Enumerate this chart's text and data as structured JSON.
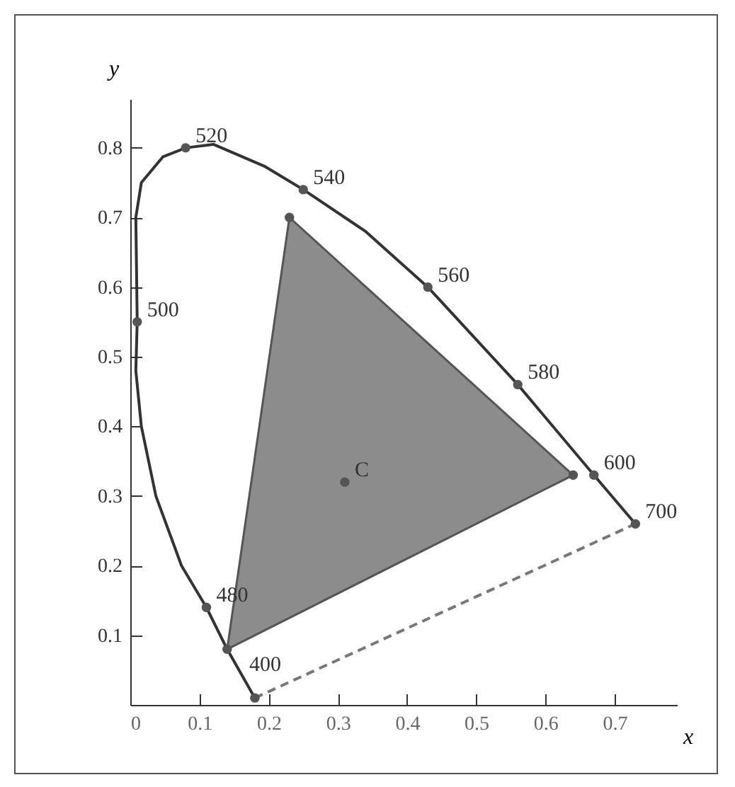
{
  "chart_data": {
    "type": "line",
    "xlabel": "x",
    "ylabel": "y",
    "xlim": [
      0,
      0.79
    ],
    "ylim": [
      0,
      0.87
    ],
    "xticks": [
      {
        "value": 0,
        "label": "0"
      },
      0.1,
      0.2,
      0.3,
      0.4,
      0.5,
      0.6,
      0.7
    ],
    "yticks": [
      0.1,
      0.2,
      0.3,
      0.4,
      0.5,
      0.6,
      0.7,
      0.8
    ],
    "grid": false,
    "annotations": [
      {
        "text": "520",
        "x": 0.08,
        "y": 0.8
      },
      {
        "text": "540",
        "x": 0.25,
        "y": 0.74
      },
      {
        "text": "560",
        "x": 0.43,
        "y": 0.6
      },
      {
        "text": "580",
        "x": 0.56,
        "y": 0.46
      },
      {
        "text": "600",
        "x": 0.67,
        "y": 0.33
      },
      {
        "text": "700",
        "x": 0.73,
        "y": 0.26
      },
      {
        "text": "500",
        "x": 0.01,
        "y": 0.55
      },
      {
        "text": "480",
        "x": 0.11,
        "y": 0.14
      },
      {
        "text": "400",
        "x": 0.18,
        "y": 0.01
      },
      {
        "text": "C",
        "x": 0.31,
        "y": 0.32
      }
    ],
    "series": [
      {
        "color": "#333333",
        "marker": "none",
        "x": [
          0.18,
          0.16,
          0.14,
          0.11,
          0.074,
          0.037,
          0.016,
          0.008,
          0.01,
          0.008,
          0.016,
          0.047,
          0.08,
          0.12,
          0.195,
          0.25,
          0.34,
          0.43,
          0.56,
          0.67,
          0.73
        ],
        "values": [
          0.01,
          0.045,
          0.08,
          0.14,
          0.2,
          0.3,
          0.4,
          0.48,
          0.55,
          0.7,
          0.75,
          0.787,
          0.8,
          0.805,
          0.773,
          0.74,
          0.68,
          0.6,
          0.46,
          0.33,
          0.26
        ]
      },
      {
        "type": "line",
        "color": "#777777",
        "line_style": "dashed",
        "marker": "none",
        "x": [
          0.18,
          0.73
        ],
        "values": [
          0.01,
          0.26
        ]
      },
      {
        "type": "area",
        "color": "#8c8c8c",
        "marker": "circle",
        "x": [
          0.23,
          0.64,
          0.14
        ],
        "values": [
          0.7,
          0.33,
          0.08
        ]
      },
      {
        "type": "scatter",
        "color": "#555555",
        "marker": "circle",
        "x": [
          0.08,
          0.25,
          0.43,
          0.56,
          0.67,
          0.73,
          0.01,
          0.11,
          0.18,
          0.31
        ],
        "values": [
          0.8,
          0.74,
          0.6,
          0.46,
          0.33,
          0.26,
          0.55,
          0.14,
          0.01,
          0.32
        ]
      }
    ]
  }
}
